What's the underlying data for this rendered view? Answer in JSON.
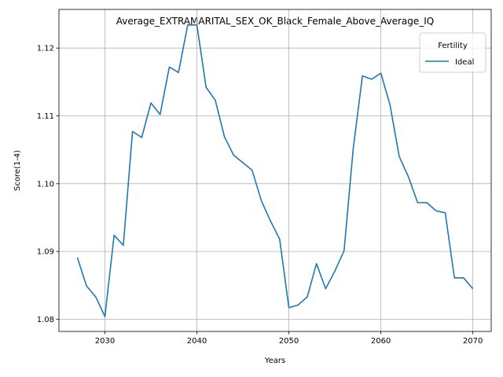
{
  "chart_data": {
    "type": "line",
    "title": "Average_EXTRAMARITAL_SEX_OK_Black_Female_Above_Average_IQ",
    "xlabel": "Years",
    "ylabel": "Score(1-4)",
    "xlim": [
      2025,
      2072
    ],
    "ylim": [
      1.0782,
      1.1257
    ],
    "x_ticks": [
      2030,
      2040,
      2050,
      2060,
      2070
    ],
    "y_ticks": [
      1.08,
      1.09,
      1.1,
      1.11,
      1.12
    ],
    "x_tick_labels": [
      "2030",
      "2040",
      "2050",
      "2060",
      "2070"
    ],
    "y_tick_labels": [
      "1.08",
      "1.09",
      "1.10",
      "1.11",
      "1.12"
    ],
    "grid": true,
    "legend": {
      "title": "Fertility",
      "position": "top-right"
    },
    "series": [
      {
        "name": "Ideal",
        "color": "#1f77b4",
        "x": [
          2027,
          2028,
          2029,
          2030,
          2031,
          2032,
          2033,
          2034,
          2035,
          2036,
          2037,
          2038,
          2039,
          2040,
          2041,
          2042,
          2043,
          2044,
          2045,
          2046,
          2047,
          2048,
          2049,
          2050,
          2051,
          2052,
          2053,
          2054,
          2055,
          2056,
          2057,
          2058,
          2059,
          2060,
          2061,
          2062,
          2063,
          2064,
          2065,
          2066,
          2067,
          2068,
          2069,
          2070
        ],
        "y": [
          1.0891,
          1.0849,
          1.0833,
          1.0804,
          1.0924,
          1.0909,
          1.1077,
          1.1068,
          1.1119,
          1.1102,
          1.1172,
          1.1164,
          1.1234,
          1.1234,
          1.1142,
          1.1123,
          1.1069,
          1.1042,
          1.1031,
          1.102,
          1.0975,
          1.0945,
          1.0918,
          1.0817,
          1.0821,
          1.0833,
          1.0882,
          1.0845,
          1.0871,
          1.0901,
          1.1052,
          1.1159,
          1.1154,
          1.1163,
          1.1116,
          1.104,
          1.101,
          1.0972,
          1.0972,
          1.096,
          1.0957,
          1.0861,
          1.0861,
          1.0845
        ]
      }
    ]
  }
}
